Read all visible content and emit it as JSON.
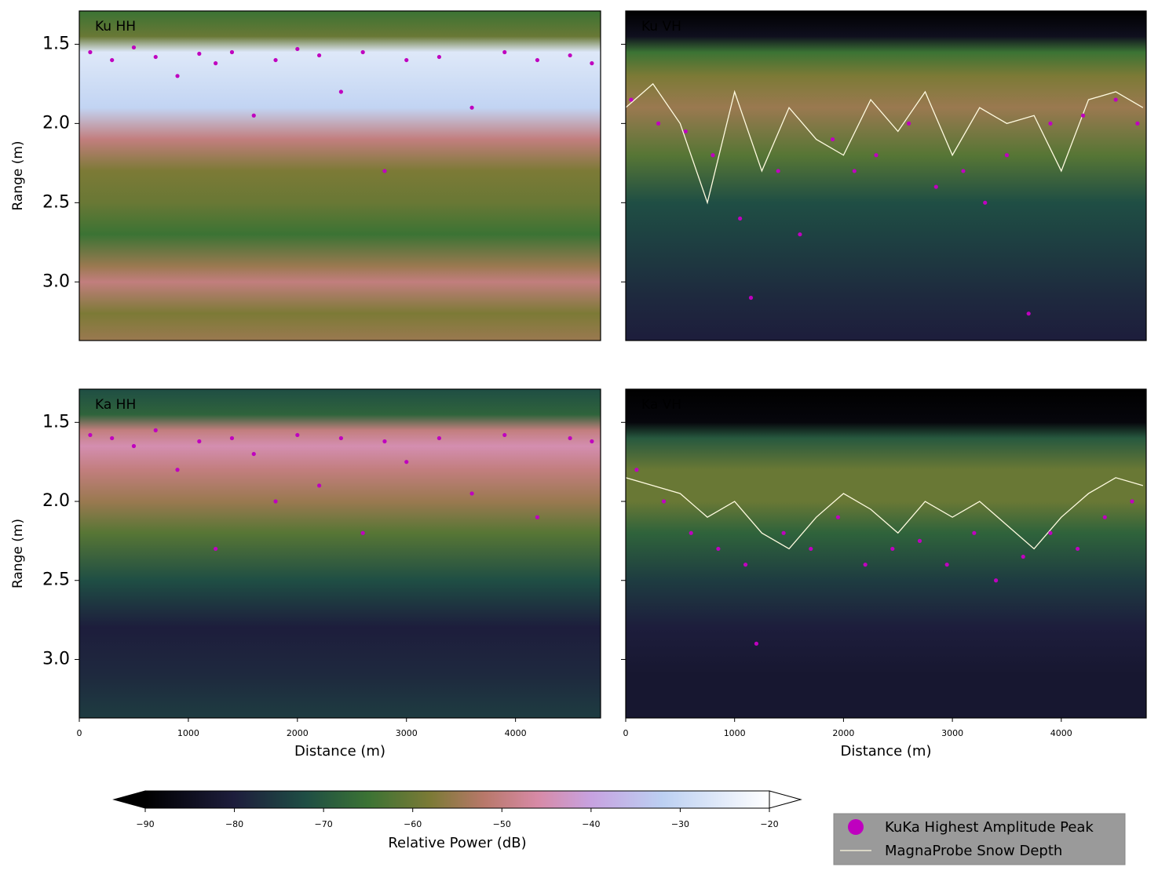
{
  "chart_data": [
    {
      "type": "radargram",
      "label": "Ku HH",
      "y_label": "Range (m)",
      "xlim": [
        0,
        4780
      ],
      "ylim": [
        1.29,
        3.37
      ],
      "y_inverted": true,
      "yticks": [
        1.5,
        {
          "value": 2,
          "label": "2.0"
        },
        2.5,
        {
          "value": 3,
          "label": "3.0"
        }
      ],
      "power_profile": {
        "range": [
          1.29,
          1.45,
          1.55,
          1.7,
          1.9,
          2.1,
          2.3,
          2.5,
          2.7,
          2.9,
          3.0,
          3.2,
          3.37
        ],
        "power": [
          -65,
          -60,
          -26,
          -28,
          -31,
          -50,
          -58,
          -60,
          -65,
          -55,
          -50,
          -58,
          -55
        ]
      },
      "series": [
        {
          "name": "KuKa Highest Amplitude Peak",
          "color": "#bf00bf",
          "kind": "scatter",
          "x": [
            100,
            300,
            500,
            700,
            900,
            1100,
            1250,
            1400,
            1600,
            1800,
            2000,
            2200,
            2400,
            2600,
            2800,
            3000,
            3300,
            3600,
            3900,
            4200,
            4500,
            4700
          ],
          "values": [
            1.55,
            1.6,
            1.52,
            1.58,
            1.7,
            1.56,
            1.62,
            1.55,
            1.95,
            1.6,
            1.53,
            1.57,
            1.8,
            1.55,
            2.3,
            1.6,
            1.58,
            1.9,
            1.55,
            1.6,
            1.57,
            1.62
          ]
        }
      ]
    },
    {
      "type": "radargram",
      "label": "Ku VH",
      "xlim": [
        0,
        4780
      ],
      "ylim": [
        1.29,
        3.37
      ],
      "y_inverted": true,
      "yticks": [
        1.5,
        2,
        2.5,
        3
      ],
      "power_profile": {
        "range": [
          1.29,
          1.45,
          1.55,
          1.7,
          1.9,
          2.2,
          2.5,
          2.8,
          3.1,
          3.37
        ],
        "power": [
          -90,
          -85,
          -65,
          -58,
          -55,
          -62,
          -72,
          -75,
          -78,
          -80
        ]
      },
      "series": [
        {
          "name": "KuKa Highest Amplitude Peak",
          "color": "#bf00bf",
          "kind": "scatter",
          "x": [
            50,
            300,
            550,
            800,
            1050,
            1150,
            1400,
            1600,
            1900,
            2100,
            2300,
            2600,
            2850,
            3100,
            3300,
            3500,
            3700,
            3900,
            4200,
            4500,
            4700
          ],
          "values": [
            1.85,
            2.0,
            2.05,
            2.2,
            2.6,
            3.1,
            2.3,
            2.7,
            2.1,
            2.3,
            2.2,
            2.0,
            2.4,
            2.3,
            2.5,
            2.2,
            3.2,
            2.0,
            1.95,
            1.85,
            2.0
          ]
        },
        {
          "name": "MagnaProbe Snow Depth",
          "color": "#fffbe0",
          "kind": "line",
          "x": [
            0,
            250,
            500,
            750,
            1000,
            1250,
            1500,
            1750,
            2000,
            2250,
            2500,
            2750,
            3000,
            3250,
            3500,
            3750,
            4000,
            4250,
            4500,
            4750
          ],
          "values": [
            1.9,
            1.75,
            2.0,
            2.5,
            1.8,
            2.3,
            1.9,
            2.1,
            2.2,
            1.85,
            2.05,
            1.8,
            2.2,
            1.9,
            2.0,
            1.95,
            2.3,
            1.85,
            1.8,
            1.9
          ]
        }
      ]
    },
    {
      "type": "radargram",
      "label": "Ka HH",
      "y_label": "Range (m)",
      "x_label": "Distance (m)",
      "xlim": [
        0,
        4780
      ],
      "ylim": [
        1.29,
        3.37
      ],
      "y_inverted": true,
      "xticks": [
        0,
        1000,
        2000,
        3000,
        4000
      ],
      "yticks": [
        1.5,
        {
          "value": 2,
          "label": "2.0"
        },
        2.5,
        {
          "value": 3,
          "label": "3.0"
        }
      ],
      "power_profile": {
        "range": [
          1.29,
          1.45,
          1.55,
          1.65,
          1.8,
          2.0,
          2.2,
          2.5,
          2.8,
          3.1,
          3.37
        ],
        "power": [
          -72,
          -68,
          -50,
          -45,
          -50,
          -55,
          -62,
          -72,
          -80,
          -78,
          -75
        ]
      },
      "series": [
        {
          "name": "KuKa Highest Amplitude Peak",
          "color": "#bf00bf",
          "kind": "scatter",
          "x": [
            100,
            300,
            500,
            700,
            900,
            1100,
            1250,
            1400,
            1600,
            1800,
            2000,
            2200,
            2400,
            2600,
            2800,
            3000,
            3300,
            3600,
            3900,
            4200,
            4500,
            4700
          ],
          "values": [
            1.58,
            1.6,
            1.65,
            1.55,
            1.8,
            1.62,
            2.3,
            1.6,
            1.7,
            2.0,
            1.58,
            1.9,
            1.6,
            2.2,
            1.62,
            1.75,
            1.6,
            1.95,
            1.58,
            2.1,
            1.6,
            1.62
          ]
        }
      ]
    },
    {
      "type": "radargram",
      "label": "Ka VH",
      "x_label": "Distance (m)",
      "xlim": [
        0,
        4780
      ],
      "ylim": [
        1.29,
        3.37
      ],
      "y_inverted": true,
      "xticks": [
        0,
        1000,
        2000,
        3000,
        4000
      ],
      "yticks": [
        1.5,
        2,
        2.5,
        3
      ],
      "power_profile": {
        "range": [
          1.29,
          1.5,
          1.6,
          1.8,
          2.0,
          2.2,
          2.5,
          2.8,
          3.1,
          3.37
        ],
        "power": [
          -90,
          -88,
          -70,
          -60,
          -60,
          -68,
          -75,
          -80,
          -82,
          -82
        ]
      },
      "series": [
        {
          "name": "KuKa Highest Amplitude Peak",
          "color": "#bf00bf",
          "kind": "scatter",
          "x": [
            100,
            350,
            600,
            850,
            1100,
            1200,
            1450,
            1700,
            1950,
            2200,
            2450,
            2700,
            2950,
            3200,
            3400,
            3650,
            3900,
            4150,
            4400,
            4650
          ],
          "values": [
            1.8,
            2.0,
            2.2,
            2.3,
            2.4,
            2.9,
            2.2,
            2.3,
            2.1,
            2.4,
            2.3,
            2.25,
            2.4,
            2.2,
            2.5,
            2.35,
            2.2,
            2.3,
            2.1,
            2.0
          ]
        },
        {
          "name": "MagnaProbe Snow Depth",
          "color": "#fffbe0",
          "kind": "line",
          "x": [
            0,
            250,
            500,
            750,
            1000,
            1250,
            1500,
            1750,
            2000,
            2250,
            2500,
            2750,
            3000,
            3250,
            3500,
            3750,
            4000,
            4250,
            4500,
            4750
          ],
          "values": [
            1.85,
            1.9,
            1.95,
            2.1,
            2.0,
            2.2,
            2.3,
            2.1,
            1.95,
            2.05,
            2.2,
            2.0,
            2.1,
            2.0,
            2.15,
            2.3,
            2.1,
            1.95,
            1.85,
            1.9
          ]
        }
      ]
    }
  ],
  "colorbar": {
    "label": "Relative Power (dB)",
    "clim": [
      -90,
      -20
    ],
    "ticks": [
      {
        "value": -90,
        "label": "−90"
      },
      {
        "value": -80,
        "label": "−80"
      },
      {
        "value": -70,
        "label": "−70"
      },
      {
        "value": -60,
        "label": "−60"
      },
      {
        "value": -50,
        "label": "−50"
      },
      {
        "value": -40,
        "label": "−40"
      },
      {
        "value": -30,
        "label": "−30"
      },
      {
        "value": -20,
        "label": "−20"
      }
    ],
    "colormap": [
      [
        -90,
        "#000000"
      ],
      [
        -80,
        "#1d1d3c"
      ],
      [
        -72,
        "#1f4e44"
      ],
      [
        -65,
        "#3b7334"
      ],
      [
        -58,
        "#7c7a36"
      ],
      [
        -52,
        "#b8786a"
      ],
      [
        -46,
        "#d78aa6"
      ],
      [
        -40,
        "#c7a2e0"
      ],
      [
        -32,
        "#bcd0f2"
      ],
      [
        -20,
        "#ffffff"
      ]
    ]
  }
}
